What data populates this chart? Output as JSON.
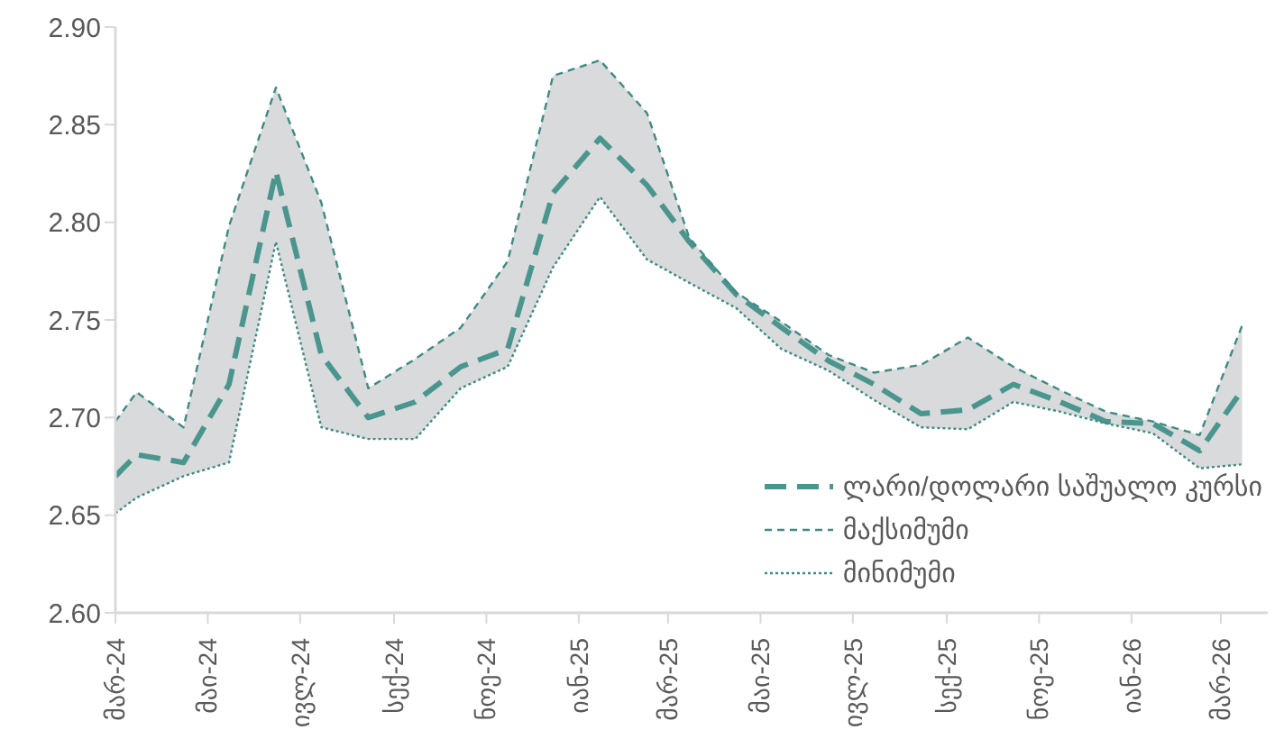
{
  "chart_data": {
    "type": "line",
    "x": [
      "2024-03-01",
      "2024-03-15",
      "2024-04-15",
      "2024-05-15",
      "2024-06-15",
      "2024-07-15",
      "2024-08-15",
      "2024-09-15",
      "2024-10-15",
      "2024-11-15",
      "2024-12-15",
      "2025-01-15",
      "2025-02-15",
      "2025-03-15",
      "2025-04-15",
      "2025-05-15",
      "2025-06-15",
      "2025-07-15",
      "2025-08-15",
      "2025-09-15",
      "2025-10-15",
      "2025-11-15",
      "2025-12-15",
      "2026-01-15",
      "2026-02-15",
      "2026-03-15"
    ],
    "series": [
      {
        "name": "ლარი/დოლარი საშუალო კურსი",
        "color": "#4a968f",
        "line_style": "dashed",
        "values": [
          2.67,
          2.681,
          2.677,
          2.717,
          2.826,
          2.732,
          2.7,
          2.708,
          2.726,
          2.735,
          2.815,
          2.843,
          2.819,
          2.79,
          2.763,
          2.746,
          2.729,
          2.717,
          2.702,
          2.704,
          2.717,
          2.708,
          2.698,
          2.697,
          2.683,
          2.714
        ],
        "lower": [
          2.651,
          2.659,
          2.67,
          2.677,
          2.79,
          2.695,
          2.689,
          2.689,
          2.715,
          2.726,
          2.777,
          2.813,
          2.781,
          2.769,
          2.756,
          2.735,
          2.724,
          2.709,
          2.695,
          2.694,
          2.708,
          2.703,
          2.697,
          2.692,
          2.674,
          2.676
        ],
        "upper": [
          2.698,
          2.713,
          2.695,
          2.798,
          2.869,
          2.81,
          2.715,
          2.73,
          2.746,
          2.78,
          2.875,
          2.883,
          2.856,
          2.792,
          2.764,
          2.749,
          2.732,
          2.723,
          2.727,
          2.741,
          2.726,
          2.714,
          2.703,
          2.698,
          2.691,
          2.747
        ]
      },
      {
        "name": "მაქსიმუმი",
        "color": "#3f8a84",
        "line_style": "dashed",
        "values": [
          2.698,
          2.713,
          2.695,
          2.798,
          2.869,
          2.81,
          2.715,
          2.73,
          2.746,
          2.78,
          2.875,
          2.883,
          2.856,
          2.792,
          2.764,
          2.749,
          2.732,
          2.723,
          2.727,
          2.741,
          2.726,
          2.714,
          2.703,
          2.698,
          2.691,
          2.747
        ]
      },
      {
        "name": "მინიმუმი",
        "color": "#3f8a84",
        "line_style": "dotted",
        "values": [
          2.651,
          2.659,
          2.67,
          2.677,
          2.79,
          2.695,
          2.689,
          2.689,
          2.715,
          2.726,
          2.777,
          2.813,
          2.781,
          2.769,
          2.756,
          2.735,
          2.724,
          2.709,
          2.695,
          2.694,
          2.708,
          2.703,
          2.697,
          2.692,
          2.674,
          2.676
        ]
      }
    ],
    "xlim": [
      "2024-03-01",
      "2026-04-01"
    ],
    "xticks": [
      {
        "value": "2024-03-01",
        "label": "მარ-24"
      },
      {
        "value": "2024-05-01",
        "label": "მაი-24"
      },
      {
        "value": "2024-07-01",
        "label": "ივლ-24"
      },
      {
        "value": "2024-09-01",
        "label": "სექ-24"
      },
      {
        "value": "2024-11-01",
        "label": "ნოე-24"
      },
      {
        "value": "2025-01-01",
        "label": "იან-25"
      },
      {
        "value": "2025-03-01",
        "label": "მარ-25"
      },
      {
        "value": "2025-05-01",
        "label": "მაი-25"
      },
      {
        "value": "2025-07-01",
        "label": "ივლ-25"
      },
      {
        "value": "2025-09-01",
        "label": "სექ-25"
      },
      {
        "value": "2025-11-01",
        "label": "ნოე-25"
      },
      {
        "value": "2026-01-01",
        "label": "იან-26"
      },
      {
        "value": "2026-03-01",
        "label": "მარ-26"
      }
    ],
    "ylim": [
      2.6,
      2.9
    ],
    "yticks": [
      {
        "value": 2.6,
        "label": "2.60"
      },
      {
        "value": 2.65,
        "label": "2.65"
      },
      {
        "value": 2.7,
        "label": "2.70"
      },
      {
        "value": 2.75,
        "label": "2.75"
      },
      {
        "value": 2.8,
        "label": "2.80"
      },
      {
        "value": 2.85,
        "label": "2.85"
      },
      {
        "value": 2.9,
        "label": "2.90"
      }
    ],
    "legend": "bottom right"
  }
}
